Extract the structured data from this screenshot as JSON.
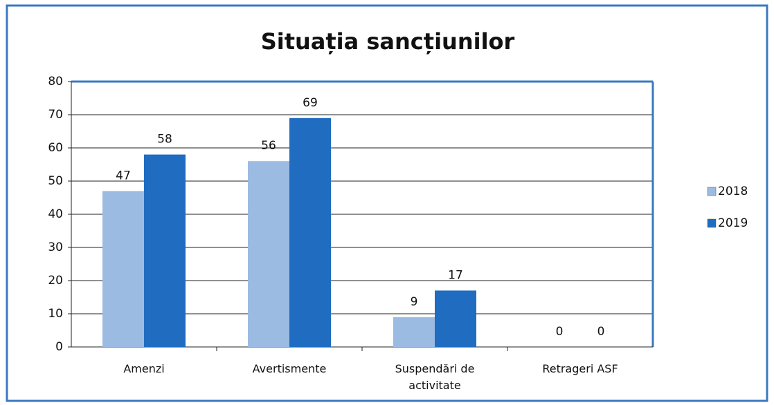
{
  "chart_data": {
    "type": "bar",
    "title": "Situația sancțiunilor",
    "categories": [
      "Amenzi",
      "Avertismente",
      "Suspendări de activitate",
      "Retrageri ASF"
    ],
    "series": [
      {
        "name": "2018",
        "color": "#9bbbe3",
        "values": [
          47,
          56,
          9,
          0
        ]
      },
      {
        "name": "2019",
        "color": "#1f6cc0",
        "values": [
          58,
          69,
          17,
          0
        ]
      }
    ],
    "ylim": [
      0,
      80
    ],
    "yticks": [
      0,
      10,
      20,
      30,
      40,
      50,
      60,
      70,
      80
    ],
    "grid": true,
    "legend": "right"
  }
}
